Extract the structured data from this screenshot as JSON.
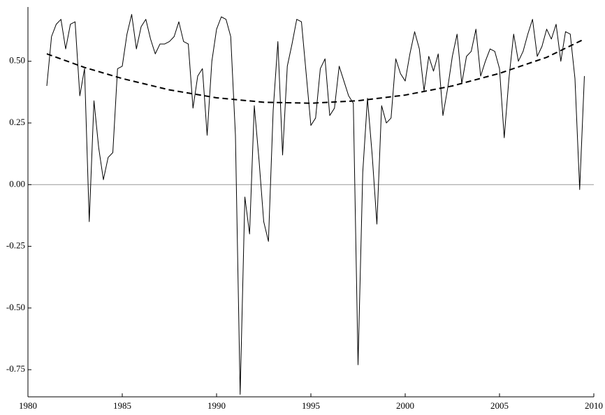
{
  "chart_data": {
    "type": "line",
    "xlim": [
      1980,
      2010
    ],
    "xticks": [
      1980,
      1985,
      1990,
      1995,
      2000,
      2005,
      2010
    ],
    "ylim": [
      -0.86,
      0.72
    ],
    "yticks": [
      {
        "value": -0.75,
        "label": "-0.75"
      },
      {
        "value": -0.5,
        "label": "-0.50"
      },
      {
        "value": -0.25,
        "label": "-0.25"
      },
      {
        "value": 0,
        "label": "0.00"
      },
      {
        "value": 0.25,
        "label": "0.25"
      },
      {
        "value": 0.5,
        "label": "0.50"
      }
    ],
    "reference_line": 0,
    "series": [
      {
        "color": "#000000",
        "line_style": "solid",
        "x": [
          1981,
          1981.25,
          1981.5,
          1981.75,
          1982,
          1982.25,
          1982.5,
          1982.75,
          1983,
          1983.25,
          1983.5,
          1983.75,
          1984,
          1984.25,
          1984.5,
          1984.75,
          1985,
          1985.25,
          1985.5,
          1985.75,
          1986,
          1986.25,
          1986.5,
          1986.75,
          1987,
          1987.25,
          1987.5,
          1987.75,
          1988,
          1988.25,
          1988.5,
          1988.75,
          1989,
          1989.25,
          1989.5,
          1989.75,
          1990,
          1990.25,
          1990.5,
          1990.75,
          1991,
          1991.25,
          1991.5,
          1991.75,
          1992,
          1992.25,
          1992.5,
          1992.75,
          1993,
          1993.25,
          1993.5,
          1993.75,
          1994,
          1994.25,
          1994.5,
          1994.75,
          1995,
          1995.25,
          1995.5,
          1995.75,
          1996,
          1996.25,
          1996.5,
          1996.75,
          1997,
          1997.25,
          1997.5,
          1997.75,
          1998,
          1998.25,
          1998.5,
          1998.75,
          1999,
          1999.25,
          1999.5,
          1999.75,
          2000,
          2000.25,
          2000.5,
          2000.75,
          2001,
          2001.25,
          2001.5,
          2001.75,
          2002,
          2002.25,
          2002.5,
          2002.75,
          2003,
          2003.25,
          2003.5,
          2003.75,
          2004,
          2004.25,
          2004.5,
          2004.75,
          2005,
          2005.25,
          2005.5,
          2005.75,
          2006,
          2006.25,
          2006.5,
          2006.75,
          2007,
          2007.25,
          2007.5,
          2007.75,
          2008,
          2008.25,
          2008.5,
          2008.75,
          2009,
          2009.25,
          2009.5
        ],
        "values": [
          0.4,
          0.6,
          0.65,
          0.67,
          0.55,
          0.65,
          0.66,
          0.36,
          0.47,
          -0.15,
          0.34,
          0.15,
          0.02,
          0.11,
          0.13,
          0.47,
          0.48,
          0.61,
          0.69,
          0.55,
          0.64,
          0.67,
          0.59,
          0.53,
          0.57,
          0.57,
          0.58,
          0.6,
          0.66,
          0.58,
          0.57,
          0.31,
          0.44,
          0.47,
          0.2,
          0.5,
          0.63,
          0.68,
          0.67,
          0.6,
          0.2,
          -0.85,
          -0.05,
          -0.2,
          0.32,
          0.1,
          -0.15,
          -0.23,
          0.3,
          0.58,
          0.12,
          0.48,
          0.57,
          0.67,
          0.66,
          0.45,
          0.24,
          0.27,
          0.47,
          0.51,
          0.28,
          0.31,
          0.48,
          0.42,
          0.36,
          0.33,
          -0.73,
          0.05,
          0.35,
          0.12,
          -0.16,
          0.32,
          0.25,
          0.27,
          0.51,
          0.45,
          0.42,
          0.53,
          0.62,
          0.55,
          0.38,
          0.52,
          0.46,
          0.53,
          0.28,
          0.39,
          0.52,
          0.61,
          0.41,
          0.52,
          0.54,
          0.63,
          0.44,
          0.5,
          0.55,
          0.54,
          0.47,
          0.19,
          0.43,
          0.61,
          0.5,
          0.54,
          0.61,
          0.67,
          0.52,
          0.56,
          0.63,
          0.59,
          0.65,
          0.5,
          0.62,
          0.61,
          0.43,
          -0.02,
          0.44
        ]
      },
      {
        "color": "#000000",
        "line_style": "dashed",
        "x": [
          1981,
          1983,
          1985,
          1987.5,
          1990,
          1992.5,
          1995,
          1997.5,
          2000,
          2002.5,
          2005,
          2007.5,
          2009.5
        ],
        "values": [
          0.53,
          0.475,
          0.43,
          0.384,
          0.352,
          0.334,
          0.33,
          0.34,
          0.363,
          0.4,
          0.451,
          0.516,
          0.59
        ]
      }
    ]
  }
}
